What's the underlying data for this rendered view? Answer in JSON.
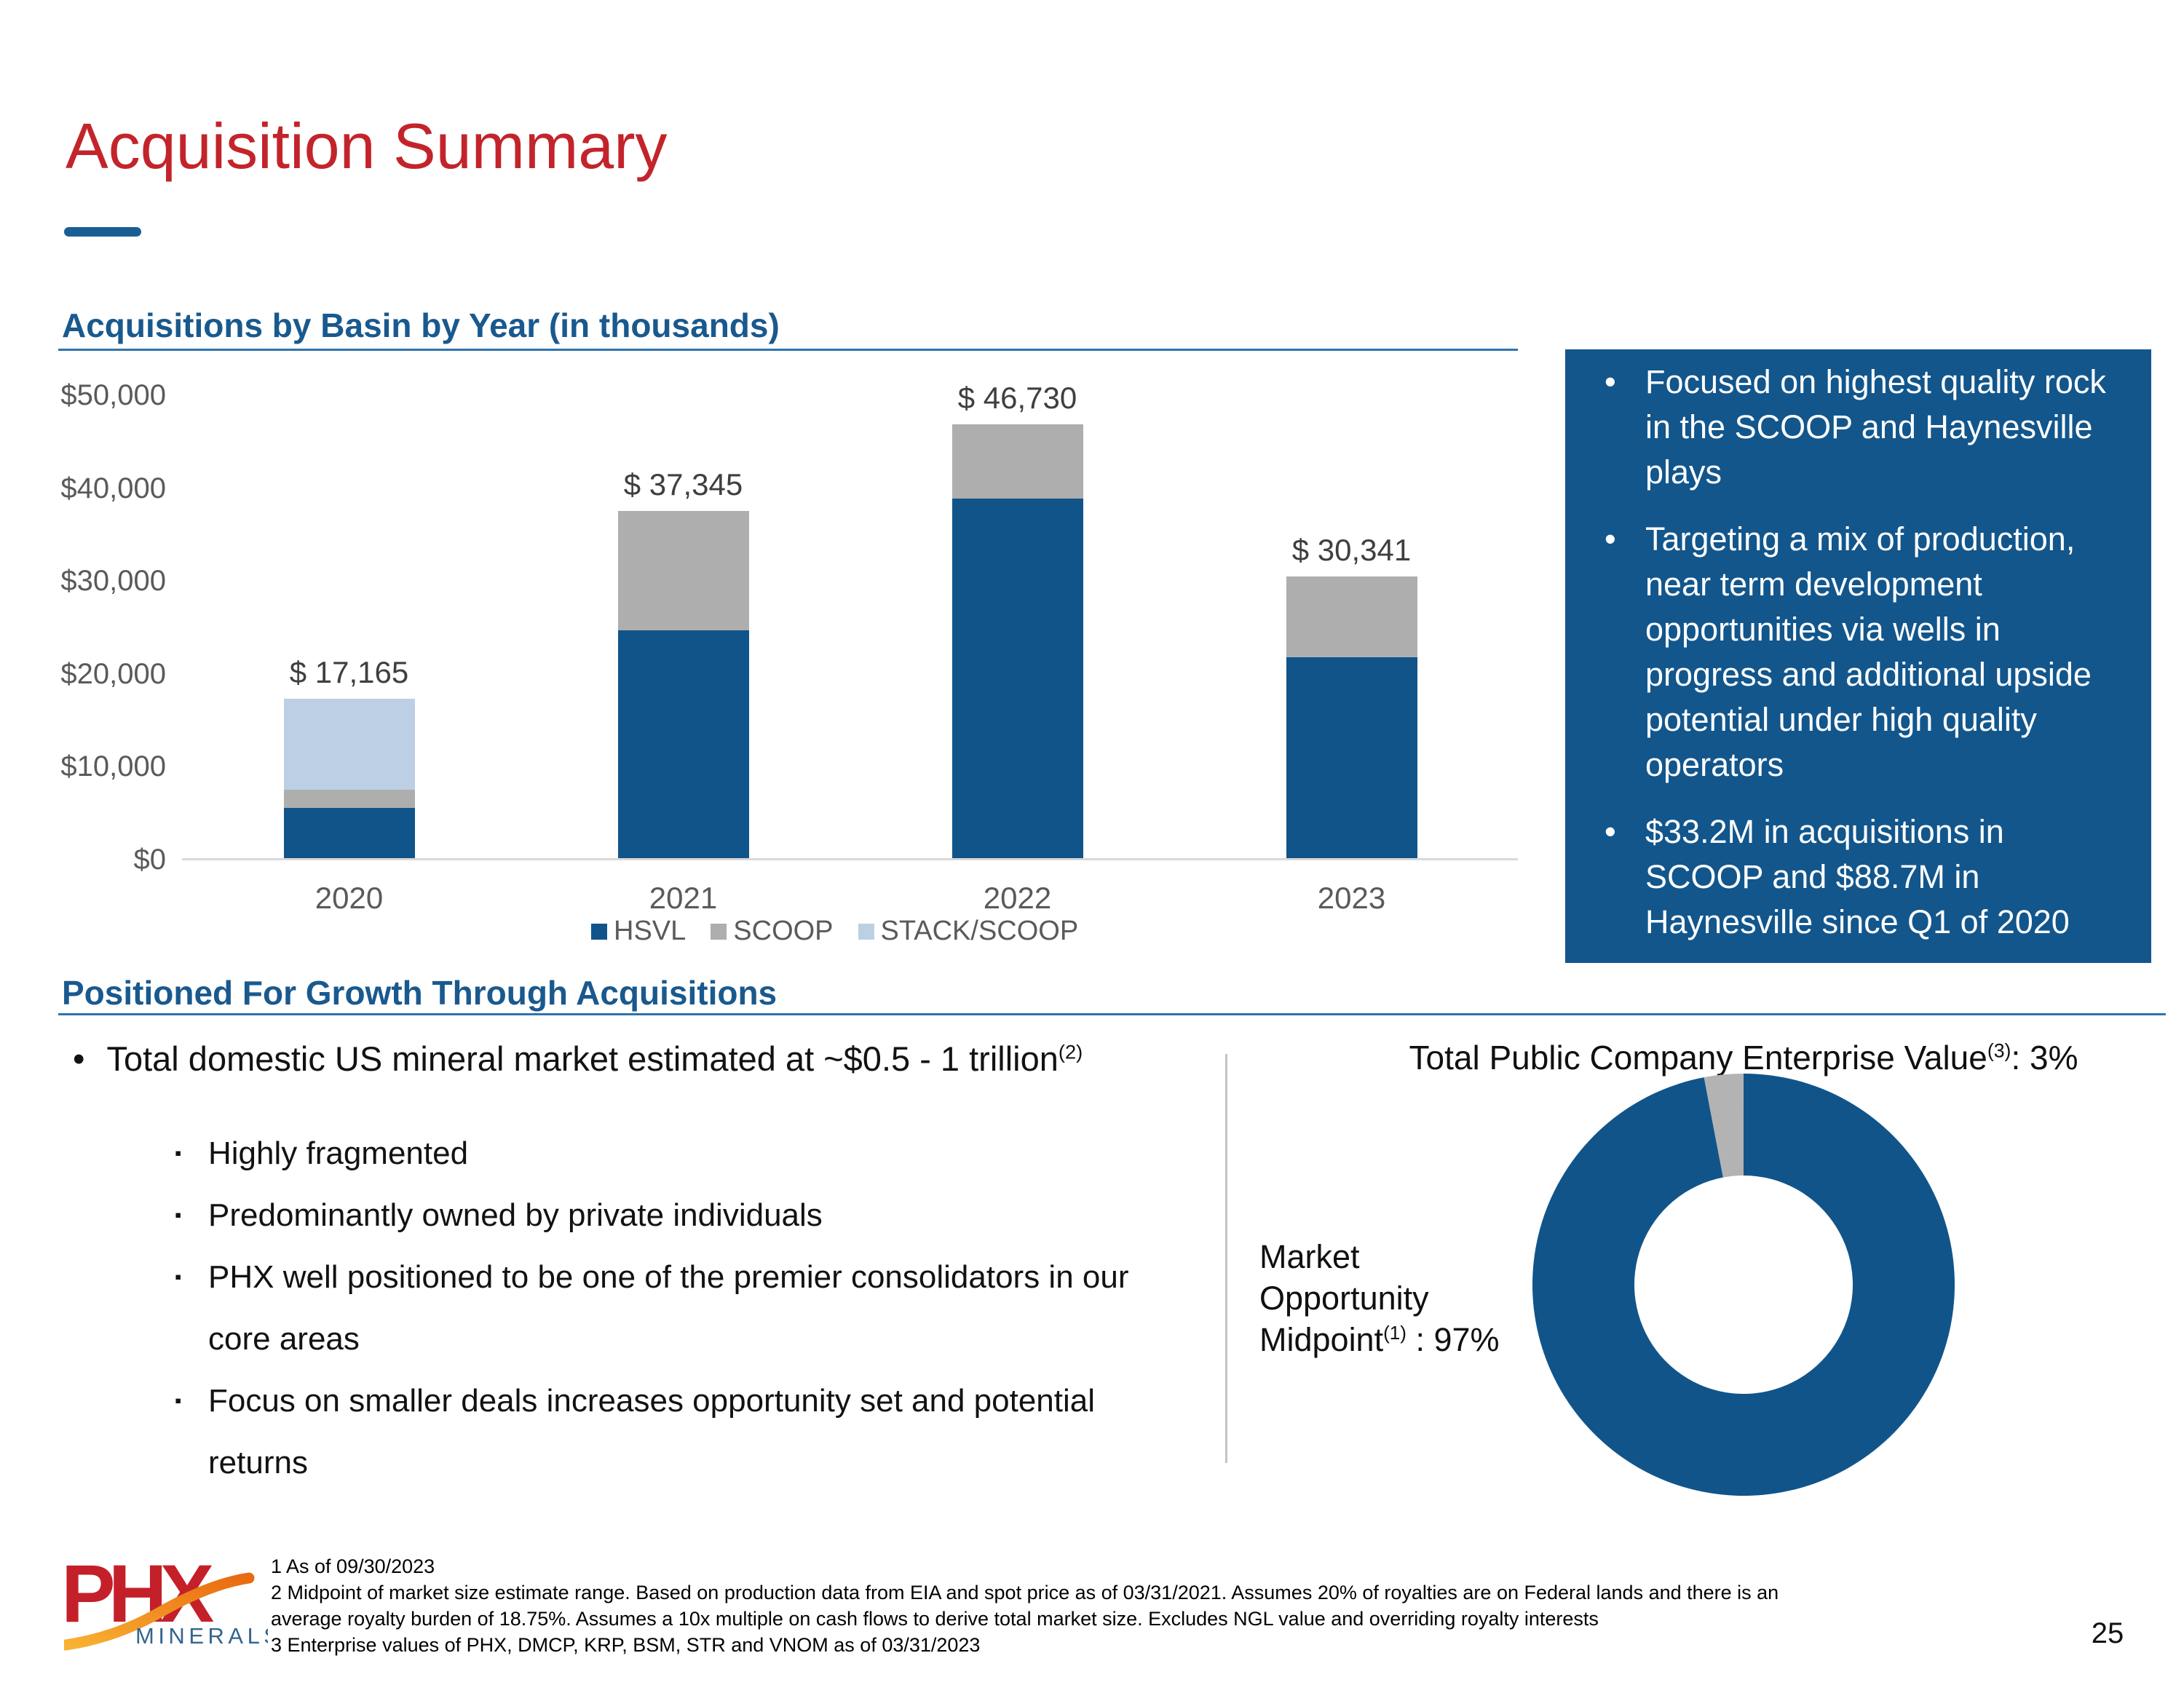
{
  "slide": {
    "title": "Acquisition Summary",
    "page_number": "25"
  },
  "bar_section": {
    "heading": "Acquisitions by Basin by Year (in thousands)"
  },
  "chart_data": [
    {
      "type": "bar",
      "stacked": true,
      "title": "Acquisitions by Basin by Year (in thousands)",
      "categories": [
        "2020",
        "2021",
        "2022",
        "2023"
      ],
      "series": [
        {
          "name": "HSVL",
          "color": "#115489",
          "values": [
            5400,
            24500,
            38700,
            21600
          ]
        },
        {
          "name": "SCOOP",
          "color": "#AEAEAE",
          "values": [
            2000,
            12845,
            8030,
            8741
          ]
        },
        {
          "name": "STACK/SCOOP",
          "color": "#BCCFE4",
          "values": [
            9765,
            0,
            0,
            0
          ]
        }
      ],
      "totals": [
        17165,
        37345,
        46730,
        30341
      ],
      "total_labels": [
        "$ 17,165",
        "$ 37,345",
        "$ 46,730",
        "$ 30,341"
      ],
      "y_ticks": [
        {
          "label": "$50,000",
          "value": 50000
        },
        {
          "label": "$40,000",
          "value": 40000
        },
        {
          "label": "$30,000",
          "value": 30000
        },
        {
          "label": "$20,000",
          "value": 20000
        },
        {
          "label": "$10,000",
          "value": 10000
        },
        {
          "label": "$0",
          "value": 0
        }
      ],
      "ylim": [
        0,
        50000
      ],
      "grid": false,
      "legend_position": "bottom"
    },
    {
      "type": "pie",
      "donut": true,
      "slices": [
        {
          "label": "Market Opportunity Midpoint (1)",
          "value": 97,
          "color": "#115489"
        },
        {
          "label": "Total Public Company Enterprise Value (3)",
          "value": 3,
          "color": "#B3B3B3"
        }
      ],
      "title": "Total Public Company Enterprise Value (3): 3%",
      "legend_position": "none"
    }
  ],
  "callout_box": {
    "bullets": [
      "Focused on highest quality rock in the SCOOP and Haynesville plays",
      "Targeting a mix of production, near term development opportunities via wells in progress and additional upside potential under high quality operators",
      "$33.2M in acquisitions in SCOOP and $88.7M in Haynesville since Q1 of 2020"
    ]
  },
  "growth_section": {
    "heading": "Positioned For Growth Through Acquisitions",
    "main_bullet": {
      "text": "Total domestic US mineral market estimated at ~$0.5 - 1 trillion",
      "sup": "(2)"
    },
    "sub_bullets": [
      [
        "Highly fragmented"
      ],
      [
        "Predominantly owned by private individuals"
      ],
      [
        "PHX well positioned to be one of the premier consolidators in our",
        "core areas"
      ],
      [
        "Focus on smaller deals increases opportunity set and potential",
        "returns"
      ]
    ]
  },
  "market_chart": {
    "title": {
      "text": "Total Public Company Enterprise Value",
      "sup": "(3)",
      "suffix": ": 3%"
    },
    "side_label": {
      "lines": [
        "Market",
        "Opportunity"
      ],
      "last_line": {
        "text": "Midpoint",
        "sup": "(1)",
        "suffix": " : 97%"
      }
    }
  },
  "footer": {
    "logo": {
      "text": "PHX",
      "subtext": "MINERALS"
    },
    "footnotes": [
      [
        "1 As of 09/30/2023"
      ],
      [
        "2 Midpoint of market size estimate range. Based on production data from EIA and spot price as of 03/31/2021. Assumes 20% of royalties are on Federal lands and there is an",
        "average royalty burden of 18.75%. Assumes a 10x multiple on cash flows to derive total market size. Excludes NGL value and overriding royalty interests"
      ],
      [
        "3 Enterprise values of PHX, DMCP, KRP, BSM, STR and VNOM as of 03/31/2023"
      ]
    ]
  },
  "colors": {
    "accent_red": "#C3242B",
    "heading_blue": "#19598E",
    "dash_blue": "#1B5E94",
    "rule_blue": "#2F74AE",
    "bar_blue": "#115489",
    "box_blue": "#12568C",
    "light_blue": "#BCCFE4",
    "scoop_gray": "#AEAEAE",
    "donut_gray": "#B3B3B3",
    "axis_gray": "#5A5A5A",
    "divider_gray": "#C4C4C4",
    "logo_red": "#C4202A",
    "logo_blue": "#33658F",
    "swoosh_orange": "#E86A10"
  }
}
